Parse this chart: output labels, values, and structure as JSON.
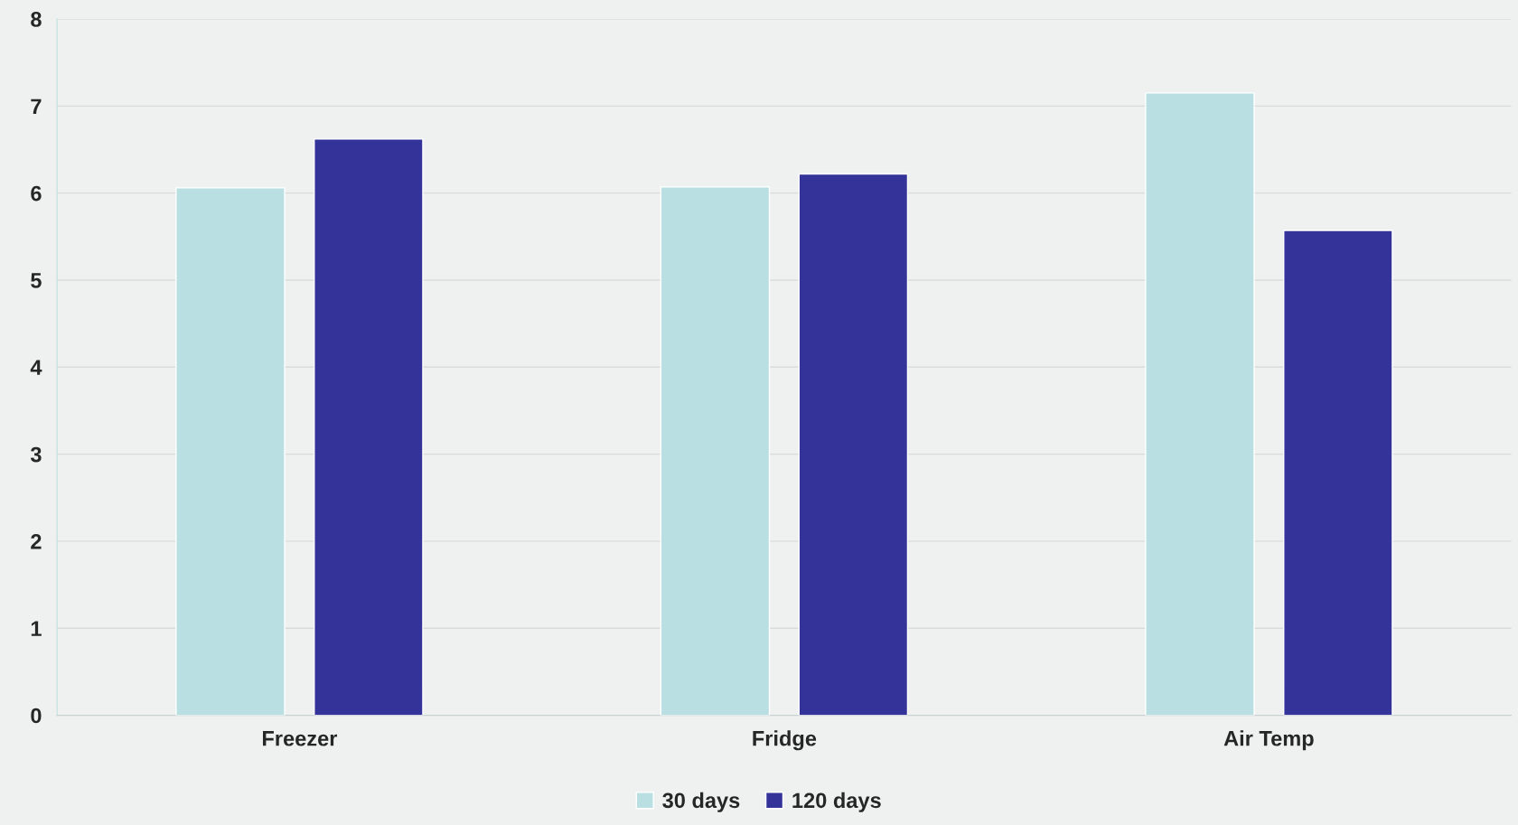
{
  "chart_data": {
    "type": "bar",
    "categories": [
      "Freezer",
      "Fridge",
      "Air Temp"
    ],
    "series": [
      {
        "name": "30 days",
        "color": "#b9dfe2",
        "values": [
          6.06,
          6.07,
          7.15
        ]
      },
      {
        "name": "120 days",
        "color": "#343399",
        "values": [
          6.62,
          6.22,
          5.57
        ]
      }
    ],
    "ylim": [
      0,
      8
    ],
    "yticks": [
      0,
      1,
      2,
      3,
      4,
      5,
      6,
      7,
      8
    ],
    "grid": "y",
    "legend": "bottom"
  }
}
